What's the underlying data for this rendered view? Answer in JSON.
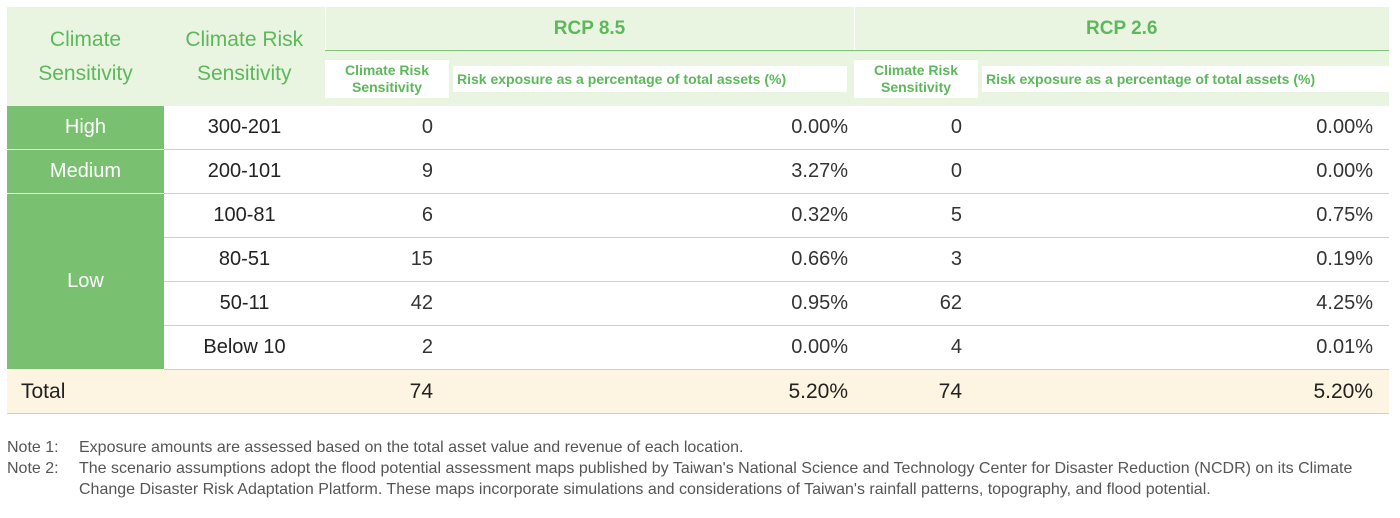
{
  "header": {
    "col1": "Climate Sensitivity",
    "col2": "Climate Risk Sensitivity",
    "scenarios": [
      {
        "name": "RCP 8.5",
        "sub_count": "Climate Risk Sensitivity",
        "sub_pct": "Risk exposure as a percentage of total assets (%)"
      },
      {
        "name": "RCP 2.6",
        "sub_count": "Climate Risk Sensitivity",
        "sub_pct": "Risk exposure as a percentage of total assets (%)"
      }
    ]
  },
  "levels": [
    "High",
    "Medium",
    "Low"
  ],
  "rows": [
    {
      "range": "300-201",
      "rcp85_count": "0",
      "rcp85_pct": "0.00%",
      "rcp26_count": "0",
      "rcp26_pct": "0.00%"
    },
    {
      "range": "200-101",
      "rcp85_count": "9",
      "rcp85_pct": "3.27%",
      "rcp26_count": "0",
      "rcp26_pct": "0.00%"
    },
    {
      "range": "100-81",
      "rcp85_count": "6",
      "rcp85_pct": "0.32%",
      "rcp26_count": "5",
      "rcp26_pct": "0.75%"
    },
    {
      "range": "80-51",
      "rcp85_count": "15",
      "rcp85_pct": "0.66%",
      "rcp26_count": "3",
      "rcp26_pct": "0.19%"
    },
    {
      "range": "50-11",
      "rcp85_count": "42",
      "rcp85_pct": "0.95%",
      "rcp26_count": "62",
      "rcp26_pct": "4.25%"
    },
    {
      "range": "Below 10",
      "rcp85_count": "2",
      "rcp85_pct": "0.00%",
      "rcp26_count": "4",
      "rcp26_pct": "0.01%"
    }
  ],
  "total": {
    "label": "Total",
    "rcp85_count": "74",
    "rcp85_pct": "5.20%",
    "rcp26_count": "74",
    "rcp26_pct": "5.20%"
  },
  "notes": [
    {
      "label": "Note 1:",
      "text": "Exposure amounts are assessed based on the total asset value and revenue of each location."
    },
    {
      "label": "Note 2:",
      "text": "The scenario assumptions adopt the flood potential assessment maps published by Taiwan's National Science and Technology Center for Disaster Reduction (NCDR) on its Climate Change Disaster Risk Adaptation Platform. These maps incorporate simulations and considerations of Taiwan's rainfall patterns, topography, and flood potential."
    }
  ],
  "colors": {
    "accent": "#79c071",
    "header_bg": "#eaf5e1",
    "header_text": "#5cb85a",
    "total_bg": "#fdf5e2"
  }
}
